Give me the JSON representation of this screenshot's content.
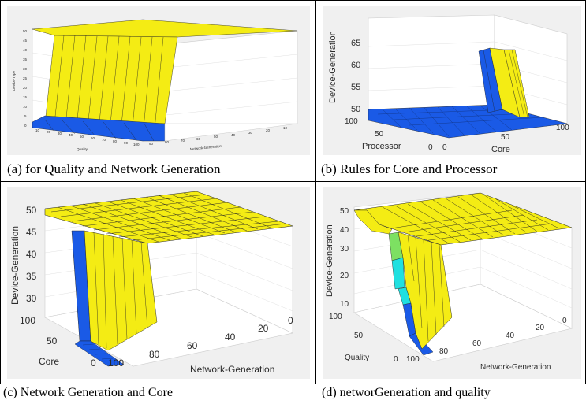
{
  "figures": [
    {
      "caption": "(a) for  Quality and Network Generation",
      "plot": {
        "zlabel": "Device-Type",
        "xlabel": "Quality",
        "ylabel": "Network-Generation",
        "zticks": [
          "0",
          "5",
          "10",
          "15",
          "20",
          "25",
          "30",
          "35",
          "40",
          "45",
          "50"
        ],
        "xticks": [
          "10",
          "20",
          "30",
          "40",
          "50",
          "60",
          "70",
          "80",
          "90",
          "100"
        ],
        "yticks": [
          "90",
          "80",
          "70",
          "60",
          "50",
          "40",
          "30",
          "20",
          "10"
        ]
      }
    },
    {
      "caption": "(b) Rules for Core and Processor",
      "plot": {
        "zlabel": "Device-Generation",
        "xlabel": "Processor",
        "ylabel": "Core",
        "zticks": [
          "50",
          "55",
          "60",
          "65"
        ],
        "xticks": [
          "100",
          "50",
          "0"
        ],
        "yticks": [
          "0",
          "50",
          "100"
        ]
      }
    },
    {
      "caption": "(c) Network Generation and Core",
      "plot": {
        "zlabel": "Device-Generation",
        "xlabel": "Core",
        "ylabel": "Network-Generation",
        "zticks": [
          "30",
          "35",
          "40",
          "45",
          "50"
        ],
        "xticks": [
          "100",
          "50",
          "0"
        ],
        "yticks": [
          "100",
          "80",
          "60",
          "40",
          "20",
          "0"
        ]
      }
    },
    {
      "caption": "(d) networGeneration and quality",
      "plot": {
        "zlabel": "Device-Generation",
        "xlabel": "Quality",
        "ylabel": "Network-Generation",
        "zticks": [
          "10",
          "20",
          "30",
          "40",
          "50"
        ],
        "xticks": [
          "100",
          "50",
          "0"
        ],
        "yticks": [
          "100",
          "80",
          "60",
          "40",
          "20",
          "0"
        ]
      }
    }
  ],
  "colors": {
    "yellow": "#f4ec14",
    "blue": "#1a5ae6",
    "cyan": "#1fe0e0",
    "green": "#7de062",
    "panel_bg": "#f0f0f0"
  }
}
